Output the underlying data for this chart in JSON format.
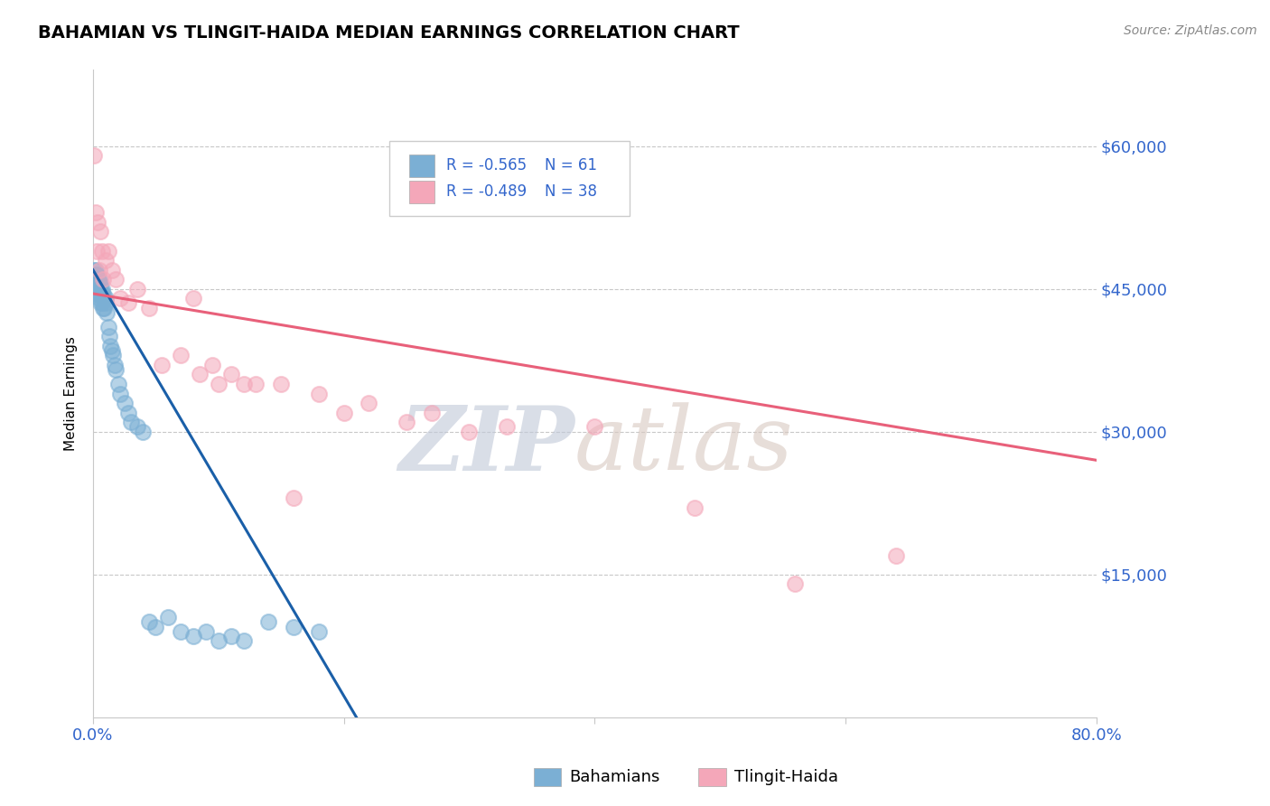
{
  "title": "BAHAMIAN VS TLINGIT-HAIDA MEDIAN EARNINGS CORRELATION CHART",
  "source": "Source: ZipAtlas.com",
  "ylabel": "Median Earnings",
  "xlim": [
    0.0,
    0.8
  ],
  "ylim": [
    0,
    68000
  ],
  "x_ticks": [
    0.0,
    0.2,
    0.4,
    0.6,
    0.8
  ],
  "x_tick_labels": [
    "0.0%",
    "",
    "",
    "",
    "80.0%"
  ],
  "y_ticks": [
    15000,
    30000,
    45000,
    60000
  ],
  "y_tick_labels": [
    "$15,000",
    "$30,000",
    "$45,000",
    "$60,000"
  ],
  "blue_R": "-0.565",
  "blue_N": "61",
  "pink_R": "-0.489",
  "pink_N": "38",
  "blue_color": "#7bafd4",
  "pink_color": "#f4a7b9",
  "blue_line_color": "#1a5fa8",
  "pink_line_color": "#e8607a",
  "legend_label_blue": "Bahamians",
  "legend_label_pink": "Tlingit-Haida",
  "watermark_zip": "ZIP",
  "watermark_atlas": "atlas",
  "blue_dots_x": [
    0.001,
    0.001,
    0.002,
    0.002,
    0.002,
    0.002,
    0.003,
    0.003,
    0.003,
    0.003,
    0.003,
    0.004,
    0.004,
    0.004,
    0.004,
    0.004,
    0.005,
    0.005,
    0.005,
    0.005,
    0.005,
    0.006,
    0.006,
    0.006,
    0.006,
    0.007,
    0.007,
    0.007,
    0.008,
    0.008,
    0.008,
    0.009,
    0.01,
    0.01,
    0.011,
    0.012,
    0.013,
    0.014,
    0.015,
    0.016,
    0.017,
    0.018,
    0.02,
    0.022,
    0.025,
    0.028,
    0.03,
    0.035,
    0.04,
    0.045,
    0.05,
    0.06,
    0.07,
    0.08,
    0.09,
    0.1,
    0.11,
    0.12,
    0.14,
    0.16,
    0.18
  ],
  "blue_dots_y": [
    47000,
    46000,
    46500,
    45500,
    47000,
    45000,
    46000,
    45500,
    44500,
    46500,
    45000,
    46000,
    45500,
    44500,
    46000,
    45000,
    45500,
    44500,
    46000,
    45000,
    44000,
    45500,
    44500,
    43500,
    45000,
    44500,
    43500,
    45000,
    44000,
    43000,
    44500,
    43000,
    44000,
    43500,
    42500,
    41000,
    40000,
    39000,
    38500,
    38000,
    37000,
    36500,
    35000,
    34000,
    33000,
    32000,
    31000,
    30500,
    30000,
    10000,
    9500,
    10500,
    9000,
    8500,
    9000,
    8000,
    8500,
    8000,
    10000,
    9500,
    9000
  ],
  "pink_dots_x": [
    0.001,
    0.002,
    0.003,
    0.004,
    0.005,
    0.006,
    0.007,
    0.008,
    0.01,
    0.012,
    0.015,
    0.018,
    0.022,
    0.028,
    0.035,
    0.045,
    0.055,
    0.07,
    0.085,
    0.1,
    0.12,
    0.15,
    0.18,
    0.22,
    0.27,
    0.33,
    0.4,
    0.48,
    0.56,
    0.64,
    0.08,
    0.095,
    0.11,
    0.13,
    0.16,
    0.2,
    0.25,
    0.3
  ],
  "pink_dots_y": [
    59000,
    53000,
    49000,
    52000,
    47000,
    51000,
    49000,
    46000,
    48000,
    49000,
    47000,
    46000,
    44000,
    43500,
    45000,
    43000,
    37000,
    38000,
    36000,
    35000,
    35000,
    35000,
    34000,
    33000,
    32000,
    30500,
    30500,
    22000,
    14000,
    17000,
    44000,
    37000,
    36000,
    35000,
    23000,
    32000,
    31000,
    30000
  ],
  "blue_line_x": [
    0.0,
    0.21
  ],
  "blue_line_y": [
    47000,
    0
  ],
  "pink_line_x": [
    0.0,
    0.8
  ],
  "pink_line_y": [
    44500,
    27000
  ]
}
